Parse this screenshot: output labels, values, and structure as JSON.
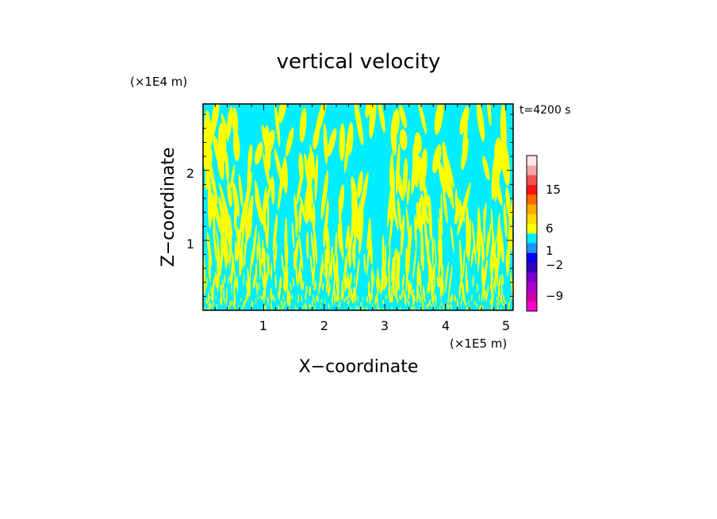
{
  "chart_data": {
    "type": "heatmap",
    "title": "vertical velocity",
    "xlabel": "X−coordinate",
    "ylabel": "Z−coordinate",
    "x_unit": "(×1E5 m)",
    "y_unit": "(×1E4 m)",
    "time_label": "t=4200 s",
    "xlim": [
      0,
      5.12
    ],
    "ylim": [
      0,
      2.95
    ],
    "x_ticks": [
      "1",
      "2",
      "3",
      "4",
      "5"
    ],
    "y_ticks": [
      "1",
      "2"
    ],
    "field_colors": {
      "positive": "#ffff00",
      "negative": "#00eeff"
    },
    "colorbar": {
      "colors": [
        "#ff00cc",
        "#cc00aa",
        "#aa00cc",
        "#7700cc",
        "#3300bb",
        "#0000ee",
        "#1e90ff",
        "#00eeff",
        "#ffff00",
        "#ffdd00",
        "#ffaa00",
        "#ff6600",
        "#ff1111",
        "#ee5555",
        "#f4a8a8",
        "#fde8e4"
      ],
      "tick_labels": [
        "15",
        "6",
        "1",
        "−2",
        "−9"
      ]
    }
  }
}
